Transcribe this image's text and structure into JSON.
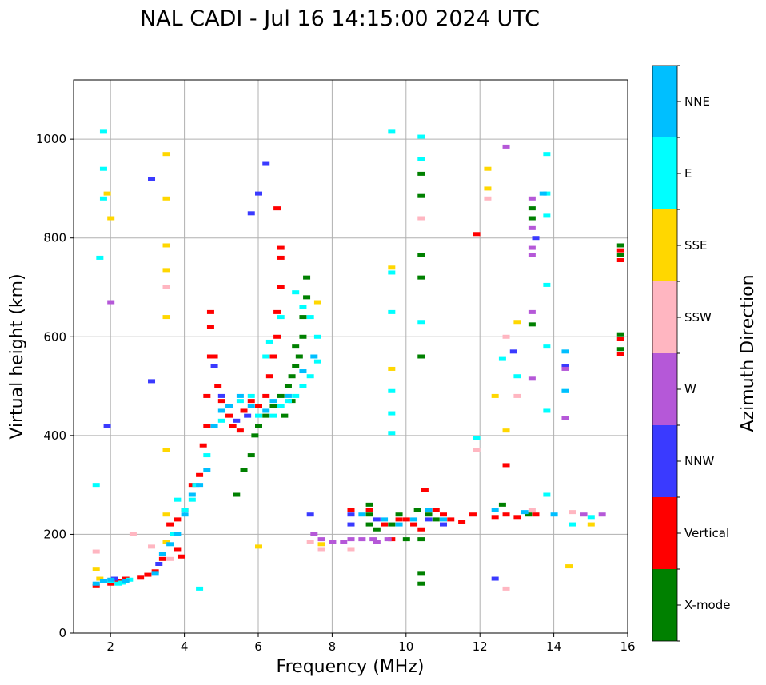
{
  "chart_data": {
    "type": "scatter",
    "title": "NAL CADI - Jul 16 14:15:00 2024 UTC",
    "xlabel": "Frequency (MHz)",
    "ylabel": "Virtual height (km)",
    "xlim": [
      1,
      16
    ],
    "ylim": [
      0,
      1120
    ],
    "xticks": [
      2,
      4,
      6,
      8,
      10,
      12,
      14,
      16
    ],
    "yticks": [
      0,
      200,
      400,
      600,
      800,
      1000
    ],
    "grid": true,
    "colorbar": {
      "label": "Azimuth Direction",
      "categories": [
        {
          "name": "X-mode",
          "color": "#008000"
        },
        {
          "name": "Vertical",
          "color": "#ff0000"
        },
        {
          "name": "NNW",
          "color": "#3a3aff"
        },
        {
          "name": "W",
          "color": "#b558d8"
        },
        {
          "name": "SSW",
          "color": "#ffb6c1"
        },
        {
          "name": "SSE",
          "color": "#ffd700"
        },
        {
          "name": "E",
          "color": "#00ffff"
        },
        {
          "name": "NNE",
          "color": "#00bfff"
        }
      ]
    },
    "series": [
      {
        "name": "X-mode",
        "color": "#008000",
        "points": [
          [
            5.4,
            280
          ],
          [
            5.6,
            330
          ],
          [
            5.8,
            360
          ],
          [
            5.9,
            400
          ],
          [
            6.0,
            420
          ],
          [
            6.2,
            440
          ],
          [
            6.4,
            460
          ],
          [
            6.6,
            480
          ],
          [
            6.8,
            500
          ],
          [
            6.9,
            520
          ],
          [
            7.0,
            540
          ],
          [
            7.1,
            560
          ],
          [
            7.2,
            600
          ],
          [
            7.2,
            640
          ],
          [
            7.3,
            680
          ],
          [
            7.3,
            720
          ],
          [
            7.0,
            580
          ],
          [
            6.9,
            470
          ],
          [
            6.7,
            440
          ],
          [
            9.0,
            220
          ],
          [
            9.0,
            240
          ],
          [
            9.0,
            260
          ],
          [
            9.2,
            210
          ],
          [
            9.6,
            220
          ],
          [
            9.8,
            240
          ],
          [
            10.0,
            190
          ],
          [
            10.3,
            250
          ],
          [
            10.4,
            190
          ],
          [
            10.4,
            120
          ],
          [
            10.4,
            100
          ],
          [
            10.6,
            240
          ],
          [
            10.8,
            230
          ],
          [
            12.6,
            260
          ],
          [
            13.3,
            240
          ],
          [
            10.4,
            560
          ],
          [
            10.4,
            720
          ],
          [
            10.4,
            765
          ],
          [
            10.4,
            885
          ],
          [
            10.4,
            930
          ],
          [
            13.4,
            625
          ],
          [
            13.4,
            860
          ],
          [
            13.4,
            840
          ],
          [
            15.8,
            785
          ],
          [
            15.8,
            765
          ],
          [
            15.8,
            605
          ],
          [
            15.8,
            575
          ]
        ]
      },
      {
        "name": "Vertical",
        "color": "#ff0000",
        "points": [
          [
            1.6,
            95
          ],
          [
            2.0,
            100
          ],
          [
            2.2,
            105
          ],
          [
            2.4,
            110
          ],
          [
            2.8,
            112
          ],
          [
            3.0,
            118
          ],
          [
            3.2,
            125
          ],
          [
            3.4,
            150
          ],
          [
            3.6,
            220
          ],
          [
            3.8,
            230
          ],
          [
            4.0,
            250
          ],
          [
            4.2,
            300
          ],
          [
            4.4,
            320
          ],
          [
            4.5,
            380
          ],
          [
            4.6,
            420
          ],
          [
            4.6,
            480
          ],
          [
            4.7,
            560
          ],
          [
            4.7,
            620
          ],
          [
            4.7,
            650
          ],
          [
            4.8,
            560
          ],
          [
            4.9,
            500
          ],
          [
            5.0,
            470
          ],
          [
            5.2,
            440
          ],
          [
            5.3,
            420
          ],
          [
            5.5,
            410
          ],
          [
            5.6,
            450
          ],
          [
            5.8,
            470
          ],
          [
            6.0,
            460
          ],
          [
            6.2,
            480
          ],
          [
            6.3,
            520
          ],
          [
            6.4,
            560
          ],
          [
            6.5,
            600
          ],
          [
            6.5,
            650
          ],
          [
            6.6,
            700
          ],
          [
            6.6,
            760
          ],
          [
            6.6,
            780
          ],
          [
            6.5,
            860
          ],
          [
            3.8,
            170
          ],
          [
            3.9,
            155
          ],
          [
            8.5,
            250
          ],
          [
            9.0,
            250
          ],
          [
            9.4,
            220
          ],
          [
            9.6,
            190
          ],
          [
            9.8,
            230
          ],
          [
            10.0,
            230
          ],
          [
            10.2,
            220
          ],
          [
            10.4,
            210
          ],
          [
            10.5,
            290
          ],
          [
            10.8,
            250
          ],
          [
            11.0,
            240
          ],
          [
            11.2,
            230
          ],
          [
            11.5,
            225
          ],
          [
            11.8,
            240
          ],
          [
            12.4,
            235
          ],
          [
            12.7,
            240
          ],
          [
            12.7,
            340
          ],
          [
            13.0,
            235
          ],
          [
            13.5,
            240
          ],
          [
            11.9,
            808
          ],
          [
            15.8,
            775
          ],
          [
            15.8,
            755
          ],
          [
            15.8,
            595
          ],
          [
            15.8,
            565
          ]
        ]
      },
      {
        "name": "NNW",
        "color": "#3a3aff",
        "points": [
          [
            1.9,
            420
          ],
          [
            2.1,
            110
          ],
          [
            3.1,
            510
          ],
          [
            3.1,
            920
          ],
          [
            3.3,
            140
          ],
          [
            4.8,
            540
          ],
          [
            5.0,
            480
          ],
          [
            5.4,
            430
          ],
          [
            5.7,
            440
          ],
          [
            6.2,
            950
          ],
          [
            5.8,
            850
          ],
          [
            6.0,
            890
          ],
          [
            7.4,
            240
          ],
          [
            8.5,
            240
          ],
          [
            8.5,
            220
          ],
          [
            9.2,
            230
          ],
          [
            10.6,
            230
          ],
          [
            11.0,
            220
          ],
          [
            12.4,
            110
          ],
          [
            12.9,
            570
          ],
          [
            13.5,
            800
          ],
          [
            14.3,
            540
          ]
        ]
      },
      {
        "name": "W",
        "color": "#b558d8",
        "points": [
          [
            7.5,
            200
          ],
          [
            7.7,
            190
          ],
          [
            8.0,
            185
          ],
          [
            8.3,
            185
          ],
          [
            8.5,
            190
          ],
          [
            8.8,
            190
          ],
          [
            9.1,
            190
          ],
          [
            9.2,
            185
          ],
          [
            9.5,
            190
          ],
          [
            12.7,
            985
          ],
          [
            13.4,
            880
          ],
          [
            13.4,
            820
          ],
          [
            13.4,
            780
          ],
          [
            13.4,
            765
          ],
          [
            13.4,
            650
          ],
          [
            13.4,
            515
          ],
          [
            14.3,
            535
          ],
          [
            14.3,
            435
          ],
          [
            15.3,
            240
          ],
          [
            14.8,
            240
          ],
          [
            2.0,
            670
          ]
        ]
      },
      {
        "name": "SSW",
        "color": "#ffb6c1",
        "points": [
          [
            1.6,
            165
          ],
          [
            2.6,
            200
          ],
          [
            3.1,
            175
          ],
          [
            3.5,
            700
          ],
          [
            3.6,
            150
          ],
          [
            7.4,
            185
          ],
          [
            7.7,
            170
          ],
          [
            8.5,
            170
          ],
          [
            10.4,
            840
          ],
          [
            11.9,
            370
          ],
          [
            12.2,
            880
          ],
          [
            12.7,
            90
          ],
          [
            12.7,
            600
          ],
          [
            13.0,
            480
          ],
          [
            13.4,
            250
          ],
          [
            14.5,
            245
          ]
        ]
      },
      {
        "name": "SSE",
        "color": "#ffd700",
        "points": [
          [
            1.6,
            130
          ],
          [
            1.7,
            110
          ],
          [
            1.9,
            890
          ],
          [
            2.0,
            840
          ],
          [
            3.5,
            970
          ],
          [
            3.5,
            880
          ],
          [
            3.5,
            785
          ],
          [
            3.5,
            735
          ],
          [
            3.5,
            640
          ],
          [
            3.5,
            370
          ],
          [
            3.5,
            240
          ],
          [
            3.5,
            185
          ],
          [
            6.0,
            175
          ],
          [
            7.7,
            180
          ],
          [
            7.6,
            670
          ],
          [
            9.6,
            740
          ],
          [
            9.6,
            535
          ],
          [
            12.2,
            940
          ],
          [
            12.2,
            900
          ],
          [
            12.4,
            480
          ],
          [
            12.7,
            410
          ],
          [
            13.0,
            630
          ],
          [
            14.4,
            135
          ],
          [
            15.0,
            220
          ]
        ]
      },
      {
        "name": "E",
        "color": "#00ffff",
        "points": [
          [
            1.6,
            300
          ],
          [
            1.7,
            760
          ],
          [
            1.8,
            105
          ],
          [
            2.0,
            105
          ],
          [
            2.2,
            100
          ],
          [
            2.3,
            102
          ],
          [
            2.5,
            108
          ],
          [
            3.7,
            200
          ],
          [
            3.8,
            270
          ],
          [
            4.0,
            250
          ],
          [
            4.2,
            270
          ],
          [
            4.3,
            300
          ],
          [
            4.4,
            90
          ],
          [
            4.6,
            360
          ],
          [
            5.0,
            430
          ],
          [
            5.5,
            470
          ],
          [
            5.8,
            480
          ],
          [
            6.0,
            440
          ],
          [
            6.4,
            440
          ],
          [
            6.6,
            460
          ],
          [
            6.8,
            470
          ],
          [
            7.0,
            480
          ],
          [
            7.2,
            500
          ],
          [
            7.4,
            520
          ],
          [
            7.6,
            550
          ],
          [
            7.6,
            600
          ],
          [
            7.4,
            640
          ],
          [
            7.2,
            660
          ],
          [
            7.0,
            690
          ],
          [
            6.6,
            640
          ],
          [
            6.3,
            590
          ],
          [
            6.2,
            560
          ],
          [
            9.6,
            405
          ],
          [
            9.6,
            445
          ],
          [
            9.6,
            490
          ],
          [
            9.6,
            650
          ],
          [
            9.6,
            730
          ],
          [
            10.4,
            630
          ],
          [
            10.4,
            1005
          ],
          [
            10.4,
            960
          ],
          [
            9.6,
            1015
          ],
          [
            11.9,
            395
          ],
          [
            12.6,
            555
          ],
          [
            13.0,
            520
          ],
          [
            13.8,
            970
          ],
          [
            13.8,
            890
          ],
          [
            13.8,
            845
          ],
          [
            13.8,
            705
          ],
          [
            13.8,
            580
          ],
          [
            13.8,
            450
          ],
          [
            13.8,
            280
          ],
          [
            14.5,
            220
          ],
          [
            14.3,
            490
          ],
          [
            15.0,
            235
          ],
          [
            1.8,
            1015
          ],
          [
            1.8,
            940
          ],
          [
            1.8,
            880
          ]
        ]
      },
      {
        "name": "NNE",
        "color": "#00bfff",
        "points": [
          [
            1.6,
            100
          ],
          [
            1.8,
            105
          ],
          [
            2.0,
            108
          ],
          [
            2.4,
            105
          ],
          [
            3.2,
            120
          ],
          [
            3.4,
            160
          ],
          [
            3.6,
            180
          ],
          [
            3.8,
            200
          ],
          [
            4.0,
            240
          ],
          [
            4.2,
            280
          ],
          [
            4.4,
            300
          ],
          [
            4.6,
            330
          ],
          [
            4.8,
            420
          ],
          [
            5.0,
            450
          ],
          [
            5.2,
            460
          ],
          [
            5.5,
            480
          ],
          [
            5.8,
            460
          ],
          [
            6.2,
            450
          ],
          [
            6.4,
            470
          ],
          [
            6.8,
            480
          ],
          [
            7.2,
            530
          ],
          [
            7.5,
            560
          ],
          [
            8.8,
            240
          ],
          [
            9.4,
            230
          ],
          [
            9.8,
            220
          ],
          [
            10.2,
            230
          ],
          [
            10.6,
            250
          ],
          [
            11.0,
            230
          ],
          [
            12.4,
            250
          ],
          [
            13.2,
            245
          ],
          [
            13.7,
            890
          ],
          [
            14.3,
            490
          ],
          [
            14.3,
            570
          ],
          [
            14.0,
            240
          ]
        ]
      }
    ]
  }
}
